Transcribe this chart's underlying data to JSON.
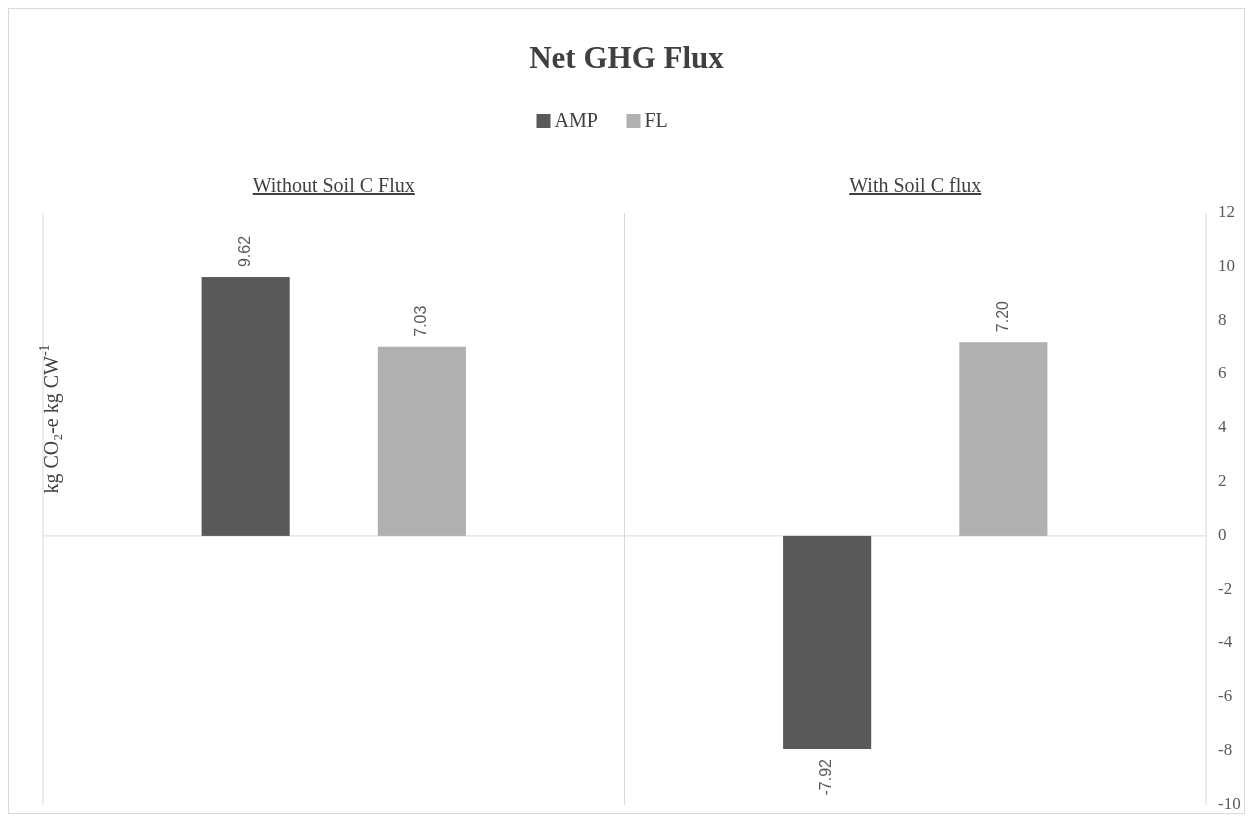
{
  "chart_data": {
    "type": "bar",
    "title": "Net GHG Flux",
    "ylabel": "kg CO₂-e kg CW$^{-1}$",
    "categories": [
      "Without Soil C Flux",
      "With Soil C flux"
    ],
    "series": [
      {
        "name": "AMP",
        "color": "#595959",
        "values": [
          9.62,
          -7.92
        ],
        "value_labels": [
          "9.62",
          "-7.92"
        ]
      },
      {
        "name": "FL",
        "color": "#b0b0b0",
        "values": [
          7.03,
          7.2
        ],
        "value_labels": [
          "7.03",
          "7.20"
        ]
      }
    ],
    "ylim": [
      -10,
      12
    ],
    "yticks": [
      -10,
      -8,
      -6,
      -4,
      -2,
      0,
      2,
      4,
      6,
      8,
      10,
      12
    ],
    "legend": "top"
  }
}
